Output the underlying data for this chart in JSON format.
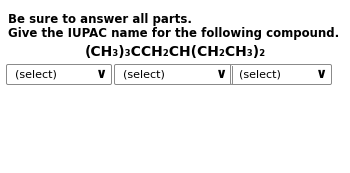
{
  "line1": "Be sure to answer all parts.",
  "line2": "Give the IUPAC name for the following compound.",
  "formula": "(CH₃)₃CCH₂CH(CH₂CH₃)₂",
  "select_labels": [
    "(select)",
    "(select)",
    "(select)"
  ],
  "bg_color": "#ffffff",
  "text_color": "#000000",
  "box_color": "#888888",
  "font_size_bold": 8.5,
  "font_size_formula": 10.0,
  "font_size_select": 8.0,
  "fig_width": 3.5,
  "fig_height": 1.73,
  "dpi": 100
}
